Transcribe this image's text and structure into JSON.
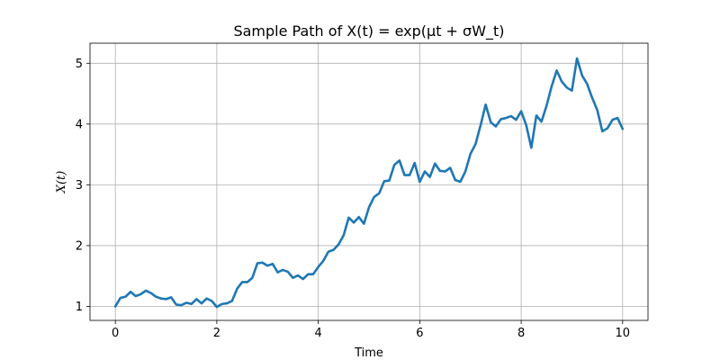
{
  "chart_data": {
    "type": "line",
    "title": "Sample Path of X(t) = exp(μt + σW_t)",
    "xlabel": "Time",
    "ylabel": "X(t)",
    "xlim": [
      -0.5,
      10.5
    ],
    "ylim": [
      0.77,
      5.33
    ],
    "xticks": [
      0,
      2,
      4,
      6,
      8,
      10
    ],
    "yticks": [
      1,
      2,
      3,
      4,
      5
    ],
    "grid": true,
    "series_color": "#1f77b4",
    "x": [
      0.0,
      0.1,
      0.2,
      0.3,
      0.4,
      0.5,
      0.6,
      0.7,
      0.8,
      0.9,
      1.0,
      1.1,
      1.2,
      1.3,
      1.4,
      1.5,
      1.6,
      1.7,
      1.8,
      1.9,
      2.0,
      2.1,
      2.2,
      2.3,
      2.4,
      2.5,
      2.6,
      2.7,
      2.8,
      2.9,
      3.0,
      3.1,
      3.2,
      3.3,
      3.4,
      3.5,
      3.6,
      3.7,
      3.8,
      3.9,
      4.0,
      4.1,
      4.2,
      4.3,
      4.4,
      4.5,
      4.6,
      4.7,
      4.8,
      4.9,
      5.0,
      5.1,
      5.2,
      5.3,
      5.4,
      5.5,
      5.6,
      5.7,
      5.8,
      5.9,
      6.0,
      6.1,
      6.2,
      6.3,
      6.4,
      6.5,
      6.6,
      6.7,
      6.8,
      6.9,
      7.0,
      7.1,
      7.2,
      7.3,
      7.4,
      7.5,
      7.6,
      7.7,
      7.8,
      7.9,
      8.0,
      8.1,
      8.2,
      8.3,
      8.4,
      8.5,
      8.6,
      8.7,
      8.8,
      8.9,
      9.0,
      9.1,
      9.2,
      9.3,
      9.4,
      9.5,
      9.6,
      9.7,
      9.8,
      9.9,
      10.0
    ],
    "series": [
      {
        "values": [
          1.0,
          1.14,
          1.16,
          1.24,
          1.17,
          1.2,
          1.26,
          1.22,
          1.16,
          1.13,
          1.12,
          1.15,
          1.03,
          1.02,
          1.06,
          1.04,
          1.12,
          1.05,
          1.13,
          1.09,
          0.99,
          1.04,
          1.05,
          1.09,
          1.29,
          1.4,
          1.4,
          1.47,
          1.71,
          1.72,
          1.67,
          1.7,
          1.56,
          1.6,
          1.57,
          1.47,
          1.51,
          1.45,
          1.53,
          1.53,
          1.65,
          1.75,
          1.9,
          1.93,
          2.02,
          2.17,
          2.46,
          2.38,
          2.47,
          2.36,
          2.63,
          2.8,
          2.86,
          3.06,
          3.07,
          3.33,
          3.4,
          3.16,
          3.16,
          3.36,
          3.05,
          3.22,
          3.13,
          3.35,
          3.23,
          3.22,
          3.28,
          3.08,
          3.05,
          3.22,
          3.51,
          3.67,
          3.98,
          4.32,
          4.03,
          3.96,
          4.08,
          4.1,
          4.13,
          4.07,
          4.21,
          3.98,
          3.61,
          4.14,
          4.04,
          4.3,
          4.62,
          4.88,
          4.7,
          4.6,
          4.55,
          5.08,
          4.8,
          4.66,
          4.43,
          4.23,
          3.88,
          3.93,
          4.07,
          4.1,
          3.92
        ]
      }
    ]
  }
}
